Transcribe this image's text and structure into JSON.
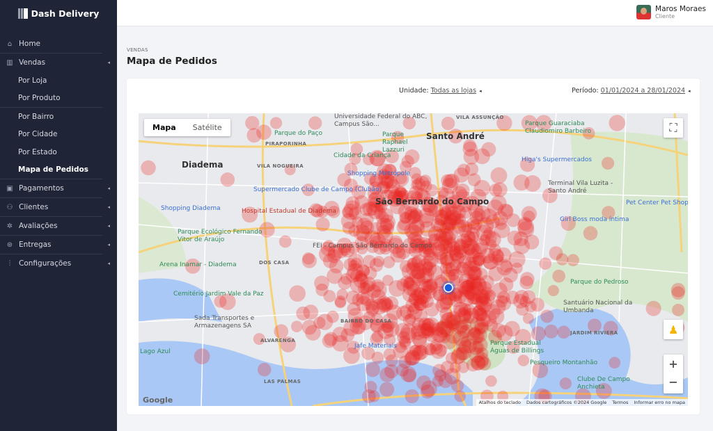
{
  "app": {
    "title": "Dash Delivery"
  },
  "sidebar": {
    "items": [
      {
        "label": "Home",
        "icon": "home-icon"
      },
      {
        "label": "Vendas",
        "icon": "bar-chart-icon",
        "expandable": true
      },
      {
        "label": "Por Loja",
        "sub": true
      },
      {
        "label": "Por Produto",
        "sub": true
      },
      {
        "label": "Por Bairro",
        "sub": true
      },
      {
        "label": "Por Cidade",
        "sub": true
      },
      {
        "label": "Por Estado",
        "sub": true
      },
      {
        "label": "Mapa de Pedidos",
        "sub": true,
        "active": true
      },
      {
        "label": "Pagamentos",
        "icon": "wallet-icon",
        "expandable": true
      },
      {
        "label": "Clientes",
        "icon": "users-icon",
        "expandable": true
      },
      {
        "label": "Avaliações",
        "icon": "stars-icon",
        "expandable": true
      },
      {
        "label": "Entregas",
        "icon": "delivery-icon",
        "expandable": true
      },
      {
        "label": "Configurações",
        "icon": "sliders-icon",
        "expandable": true
      }
    ]
  },
  "user": {
    "name": "Maros Moraes",
    "role": "Cliente"
  },
  "page": {
    "breadcrumb": "VENDAS",
    "title": "Mapa de Pedidos"
  },
  "filters": {
    "unidade_label": "Unidade:",
    "unidade_value": "Todas as lojas",
    "periodo_label": "Período:",
    "periodo_value": "01/01/2024 a 28/01/2024"
  },
  "map": {
    "type_tabs": [
      "Mapa",
      "Satélite"
    ],
    "selected_tab": "Mapa",
    "heat_color": "#e8251f",
    "marker_color": "#1a5ee0",
    "labels": [
      {
        "t": "Santo André",
        "c": "big"
      },
      {
        "t": "Diadema",
        "c": "big"
      },
      {
        "t": "São Bernardo do Campo",
        "c": "big"
      },
      {
        "t": "VILA ASSUNÇÃO",
        "c": "s"
      },
      {
        "t": "PIRAPORINHA",
        "c": "s"
      },
      {
        "t": "VILA NOGUEIRA",
        "c": "s"
      },
      {
        "t": "ALVARENGA",
        "c": "s"
      },
      {
        "t": "BAIRRO DO CASA",
        "c": "s"
      },
      {
        "t": "LAS PALMAS",
        "c": "s"
      },
      {
        "t": "Universidade Federal do ABC, Campus São...",
        "c": ""
      },
      {
        "t": "Parque Raphael Lazzuri",
        "c": "g"
      },
      {
        "t": "Parque Guaraciaba Claudiomiro Barbeiro",
        "c": "g"
      },
      {
        "t": "Parque do Paço",
        "c": "g"
      },
      {
        "t": "Cidade da Criança",
        "c": "g"
      },
      {
        "t": "Shopping Metrópole",
        "c": "b"
      },
      {
        "t": "Higa's Supermercados",
        "c": "b"
      },
      {
        "t": "Supermercado Clube de Campo (Clubão)",
        "c": "b"
      },
      {
        "t": "Shopping Diadema",
        "c": "b"
      },
      {
        "t": "Hospital Estadual de Diadema",
        "c": "r"
      },
      {
        "t": "Terminal Vila Luzita - Santo André",
        "c": ""
      },
      {
        "t": "Pet Center Pet Shop",
        "c": "b"
      },
      {
        "t": "Girl Boss moda íntima",
        "c": "b"
      },
      {
        "t": "Parque Ecológico Fernando Vitor de Araújo",
        "c": "g"
      },
      {
        "t": "Arena Inamar - Diadema",
        "c": "g"
      },
      {
        "t": "Cemitério Jardim Vale da Paz",
        "c": "g"
      },
      {
        "t": "Sada Transportes e Armazenagens SA",
        "c": ""
      },
      {
        "t": "Parque do Pedroso",
        "c": "g"
      },
      {
        "t": "Santuário Nacional da Umbanda",
        "c": ""
      },
      {
        "t": "Parque Estadual Águas de Billings",
        "c": "g"
      },
      {
        "t": "Pesqueiro Montanhão",
        "c": "g"
      },
      {
        "t": "Clube De Campo Anchieta",
        "c": "g"
      },
      {
        "t": "Lago Azul",
        "c": "g"
      },
      {
        "t": "Jafe Materiais",
        "c": "b"
      },
      {
        "t": "JARDIM RIVIERA",
        "c": "s"
      },
      {
        "t": "DOS CASA",
        "c": "s"
      },
      {
        "t": "FEI - Campus São Bernardo do Campo",
        "c": ""
      }
    ],
    "attribution": [
      "Atalhos do teclado",
      "Dados cartográficos ©2024 Google",
      "Termos",
      "Informar erro no mapa"
    ],
    "google_logo": "Google"
  }
}
